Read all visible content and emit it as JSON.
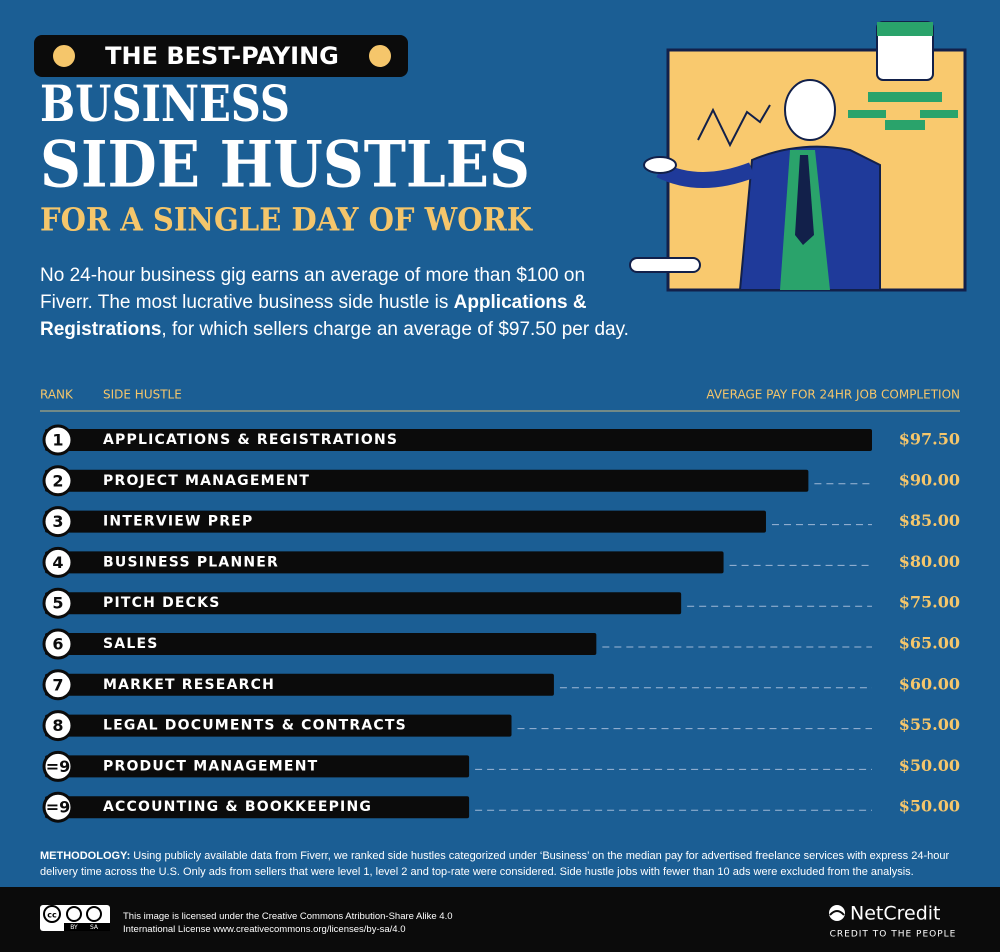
{
  "header": {
    "badge": "THE BEST-PAYING",
    "title_line1": "BUSINESS",
    "title_line2": "SIDE HUSTLES",
    "subtitle": "FOR A SINGLE DAY OF WORK",
    "description": [
      "No 24-hour business gig earns an average of more than $100 on Fiverr. The most lucrative business side hustle is ",
      "Applications & Registrations",
      ", for which sellers charge an average of $97.50 per day."
    ]
  },
  "chart_data": {
    "type": "bar",
    "column_headers": {
      "rank": "RANK",
      "name": "SIDE HUSTLE",
      "value": "AVERAGE PAY FOR 24HR JOB COMPLETION"
    },
    "ranks": [
      "1",
      "2",
      "3",
      "4",
      "5",
      "6",
      "7",
      "8",
      "=9",
      "=9"
    ],
    "categories": [
      "APPLICATIONS & REGISTRATIONS",
      "PROJECT MANAGEMENT",
      "INTERVIEW PREP",
      "BUSINESS PLANNER",
      "PITCH DECKS",
      "SALES",
      "MARKET RESEARCH",
      "LEGAL DOCUMENTS & CONTRACTS",
      "PRODUCT MANAGEMENT",
      "ACCOUNTING & BOOKKEEPING"
    ],
    "values": [
      97.5,
      90,
      85,
      80,
      75,
      65,
      60,
      55,
      50,
      50
    ],
    "value_labels": [
      "$97.50",
      "$90.00",
      "$85.00",
      "$80.00",
      "$75.00",
      "$65.00",
      "$60.00",
      "$55.00",
      "$50.00",
      "$50.00"
    ],
    "color": "#0b0b0b"
  },
  "methodology": {
    "label": "METHODOLOGY:",
    "text": " Using publicly available data from Fiverr, we ranked side hustles categorized under ‘Business’ on the median pay for advertised freelance services with express 24-hour delivery time across the U.S. Only ads from sellers that were level 1, level 2 and top-rate were considered. Side hustle jobs with fewer than 10 ads were excluded from the analysis."
  },
  "footer": {
    "cc_icon": "cc",
    "by": "BY",
    "sa": "SA",
    "license": "This image is licensed under the Creative Commons Atribution-Share Alike 4.0 International License www.creativecommons.org/licenses/by-sa/4.0",
    "brand": "NetCredit",
    "tagline": "CREDIT TO THE PEOPLE"
  }
}
